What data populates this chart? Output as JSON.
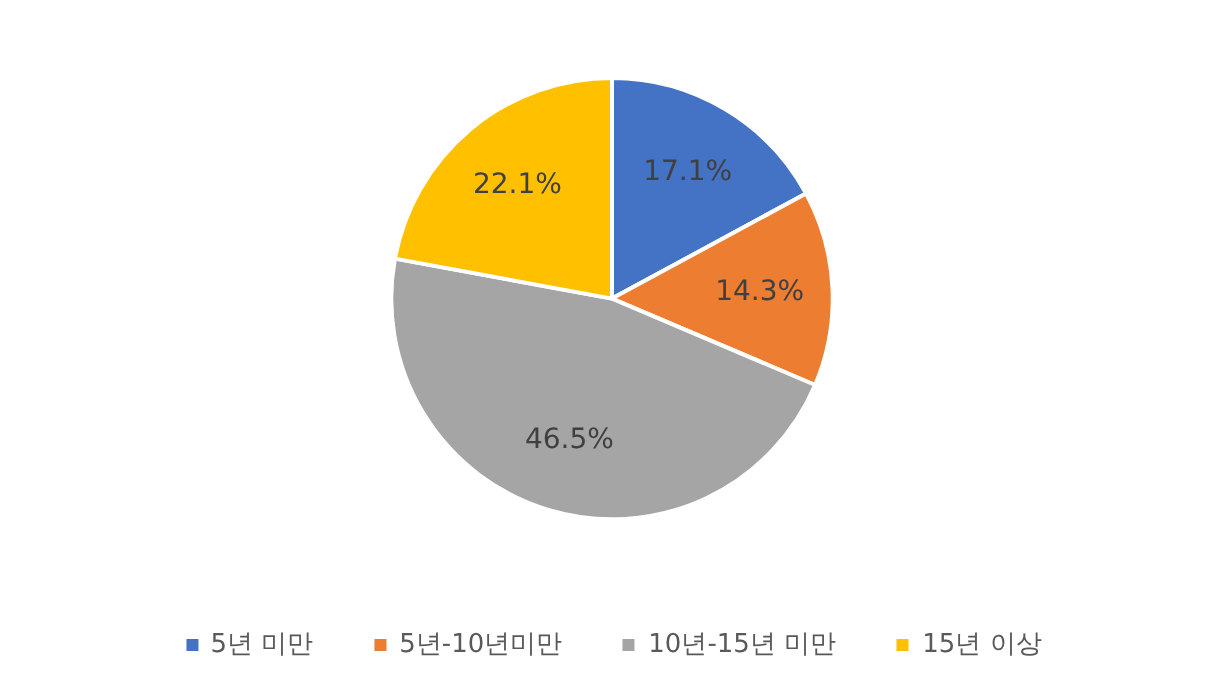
{
  "chart_data": {
    "type": "pie",
    "categories": [
      "5년 미만",
      "5년-10년미만",
      "10년-15년 미만",
      "15년 이상"
    ],
    "values": [
      17.1,
      14.3,
      46.5,
      22.1
    ],
    "colors": [
      "#4472c4",
      "#ed7d31",
      "#a5a5a5",
      "#ffc000"
    ],
    "value_labels": [
      "17.1%",
      "14.3%",
      "46.5%",
      "22.1%"
    ],
    "legend": "bottom"
  }
}
